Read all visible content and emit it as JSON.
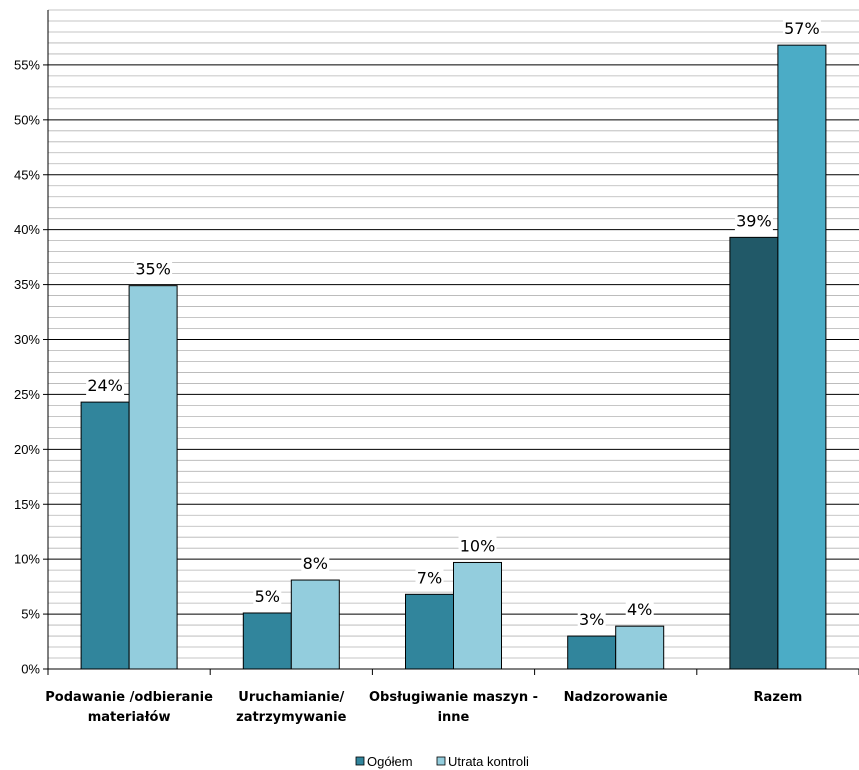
{
  "chart_data": {
    "type": "bar",
    "categories": [
      [
        "Podawanie /odbieranie",
        "materiałów"
      ],
      [
        "Uruchamianie/",
        "zatrzymywanie"
      ],
      [
        "Obsługiwanie maszyn -",
        "inne"
      ],
      [
        "Nadzorowanie"
      ],
      [
        "Razem"
      ]
    ],
    "series": [
      {
        "name": "Ogółem",
        "values": [
          24.3,
          5.1,
          6.8,
          3.0,
          39.3
        ],
        "labels": [
          "24%",
          "5%",
          "7%",
          "3%",
          "39%"
        ],
        "color": "#31859C",
        "highlight_color": "#215968"
      },
      {
        "name": "Utrata kontroli",
        "values": [
          34.9,
          8.1,
          9.7,
          3.9,
          56.8
        ],
        "labels": [
          "35%",
          "8%",
          "10%",
          "4%",
          "57%"
        ],
        "color": "#93CDDD",
        "highlight_color": "#4BACC6"
      }
    ],
    "highlight_category_index": 4,
    "ylim": [
      0,
      60
    ],
    "yticks": [
      0,
      5,
      10,
      15,
      20,
      25,
      30,
      35,
      40,
      45,
      50,
      55
    ],
    "ytick_labels": [
      "0%",
      "5%",
      "10%",
      "15%",
      "20%",
      "25%",
      "30%",
      "35%",
      "40%",
      "45%",
      "50%",
      "55%"
    ],
    "minor_grid_step": 1,
    "grid": true,
    "legend_position": "bottom",
    "title": "",
    "xlabel": "",
    "ylabel": ""
  }
}
